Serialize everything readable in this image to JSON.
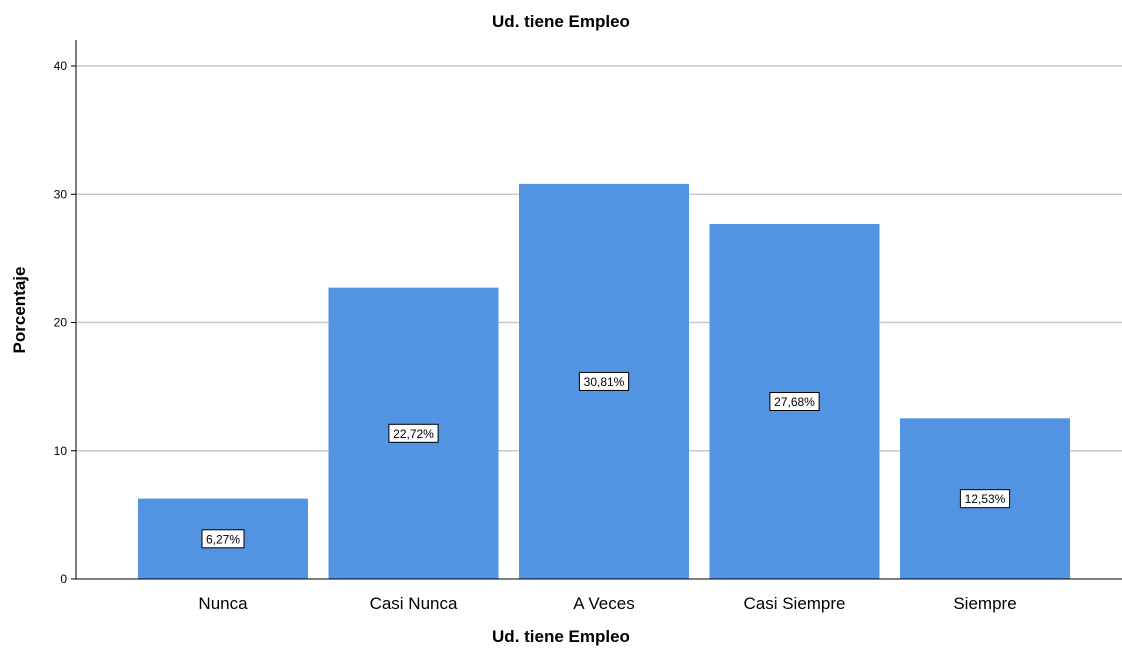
{
  "chart_data": {
    "type": "bar",
    "title": "Ud. tiene Empleo",
    "xlabel": "Ud. tiene Empleo",
    "ylabel": "Porcentaje",
    "categories": [
      "Nunca",
      "Casi Nunca",
      "A Veces",
      "Casi Siempre",
      "Siempre"
    ],
    "values": [
      6.27,
      22.72,
      30.81,
      27.68,
      12.53
    ],
    "data_labels": [
      "6,27%",
      "22,72%",
      "30,81%",
      "27,68%",
      "12,53%"
    ],
    "ylim": [
      0,
      42
    ],
    "yticks": [
      0,
      10,
      20,
      30,
      40
    ],
    "grid": true,
    "legend": "none",
    "bar_color": "#5294e2"
  }
}
